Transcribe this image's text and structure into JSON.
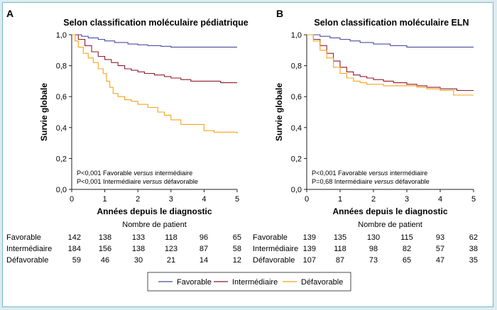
{
  "panels": [
    {
      "letter": "A",
      "title": "Selon classification moléculaire pédiatrique",
      "ylabel": "Survie globale",
      "xlabel": "Années depuis le diagnostic",
      "notes": [
        {
          "p": "P<0,001",
          "a": "Favorable ",
          "b": "versus",
          "c": " intermédiaire"
        },
        {
          "p": "P<0,001",
          "a": "Intermédiaire ",
          "b": "versus",
          "c": " défavorable"
        }
      ]
    },
    {
      "letter": "B",
      "title": "Selon classification moléculaire ELN",
      "ylabel": "Survie globale",
      "xlabel": "Années depuis le diagnostic",
      "notes": [
        {
          "p": "P<0,001",
          "a": "Favorable ",
          "b": "versus",
          "c": " intermédiaire"
        },
        {
          "p": "P=0,68",
          "a": "Intermédiaire ",
          "b": "versus",
          "c": " défavorable"
        }
      ]
    }
  ],
  "risk_table": {
    "heading": "Nombre de patient",
    "rows": [
      "Favorable",
      "Intermédiaire",
      "Défavorable"
    ],
    "A": [
      [
        "142",
        "138",
        "133",
        "118",
        "96",
        "65"
      ],
      [
        "184",
        "156",
        "138",
        "123",
        "87",
        "58"
      ],
      [
        "59",
        "46",
        "30",
        "21",
        "14",
        "12"
      ]
    ],
    "B": [
      [
        "139",
        "135",
        "130",
        "115",
        "93",
        "62"
      ],
      [
        "139",
        "118",
        "98",
        "82",
        "57",
        "38"
      ],
      [
        "107",
        "87",
        "73",
        "65",
        "47",
        "35"
      ]
    ]
  },
  "legend": [
    "Favorable",
    "Intermédiaire",
    "Défavorable"
  ],
  "colors": {
    "Favorable": "#4b4b9e",
    "Intermédiaire": "#8c1c2e",
    "Défavorable": "#f5a31a"
  },
  "chart_data": [
    {
      "type": "line",
      "title": "Selon classification moléculaire pédiatrique",
      "xlabel": "Années depuis le diagnostic",
      "ylabel": "Survie globale",
      "xlim": [
        0,
        5
      ],
      "ylim": [
        0,
        1
      ],
      "xticks": [
        "0",
        "1",
        "2",
        "3",
        "4",
        "5"
      ],
      "yticks": [
        "0,0",
        "0,2",
        "0,4",
        "0,6",
        "0,8",
        "1,0"
      ],
      "series": [
        {
          "name": "Favorable",
          "x": [
            0,
            0.3,
            0.5,
            0.8,
            1.0,
            1.3,
            1.7,
            2.0,
            2.3,
            2.7,
            3.0,
            4.0,
            5.0
          ],
          "y": [
            1.0,
            0.99,
            0.98,
            0.97,
            0.96,
            0.95,
            0.94,
            0.935,
            0.93,
            0.925,
            0.92,
            0.92,
            0.92
          ]
        },
        {
          "name": "Intermédiaire",
          "x": [
            0,
            0.2,
            0.4,
            0.6,
            0.8,
            1.0,
            1.2,
            1.4,
            1.6,
            1.8,
            2.0,
            2.2,
            2.5,
            2.8,
            3.0,
            3.3,
            3.6,
            4.0,
            4.5,
            5.0
          ],
          "y": [
            1.0,
            0.97,
            0.93,
            0.89,
            0.86,
            0.84,
            0.82,
            0.8,
            0.78,
            0.77,
            0.76,
            0.75,
            0.74,
            0.73,
            0.72,
            0.71,
            0.7,
            0.7,
            0.69,
            0.69
          ]
        },
        {
          "name": "Défavorable",
          "x": [
            0,
            0.1,
            0.2,
            0.35,
            0.5,
            0.65,
            0.8,
            0.95,
            1.05,
            1.15,
            1.25,
            1.4,
            1.6,
            1.8,
            2.0,
            2.3,
            2.6,
            2.8,
            3.0,
            3.3,
            3.6,
            4.0,
            4.3,
            5.0
          ],
          "y": [
            1.0,
            0.96,
            0.92,
            0.88,
            0.85,
            0.82,
            0.78,
            0.75,
            0.7,
            0.66,
            0.62,
            0.6,
            0.58,
            0.57,
            0.55,
            0.53,
            0.5,
            0.48,
            0.45,
            0.42,
            0.42,
            0.38,
            0.37,
            0.36
          ]
        }
      ],
      "annotations": [
        "P<0,001 Favorable versus intermédiaire",
        "P<0,001 Intermédiaire versus défavorable"
      ],
      "legend_position": "bottom"
    },
    {
      "type": "line",
      "title": "Selon classification moléculaire ELN",
      "xlabel": "Années depuis le diagnostic",
      "ylabel": "Survie globale",
      "xlim": [
        0,
        5
      ],
      "ylim": [
        0,
        1
      ],
      "xticks": [
        "0",
        "1",
        "2",
        "3",
        "4",
        "5"
      ],
      "yticks": [
        "0,0",
        "0,2",
        "0,4",
        "0,6",
        "0,8",
        "1,0"
      ],
      "series": [
        {
          "name": "Favorable",
          "x": [
            0,
            0.4,
            0.7,
            1.0,
            1.3,
            1.6,
            2.0,
            2.5,
            3.0,
            4.0,
            5.0
          ],
          "y": [
            1.0,
            0.99,
            0.98,
            0.97,
            0.96,
            0.95,
            0.94,
            0.93,
            0.92,
            0.92,
            0.92
          ]
        },
        {
          "name": "Intermédiaire",
          "x": [
            0,
            0.2,
            0.4,
            0.6,
            0.8,
            1.0,
            1.2,
            1.4,
            1.6,
            1.8,
            2.0,
            2.3,
            2.6,
            3.0,
            3.3,
            3.6,
            4.0,
            4.5,
            5.0
          ],
          "y": [
            1.0,
            0.97,
            0.93,
            0.88,
            0.83,
            0.79,
            0.76,
            0.74,
            0.73,
            0.72,
            0.71,
            0.7,
            0.69,
            0.68,
            0.67,
            0.66,
            0.65,
            0.64,
            0.64
          ]
        },
        {
          "name": "Défavorable",
          "x": [
            0,
            0.2,
            0.4,
            0.6,
            0.8,
            1.0,
            1.2,
            1.4,
            1.6,
            1.8,
            2.0,
            2.3,
            2.6,
            3.0,
            3.3,
            3.6,
            4.0,
            4.4,
            5.0
          ],
          "y": [
            1.0,
            0.96,
            0.9,
            0.85,
            0.79,
            0.75,
            0.72,
            0.7,
            0.69,
            0.68,
            0.68,
            0.67,
            0.67,
            0.67,
            0.66,
            0.65,
            0.64,
            0.61,
            0.61
          ]
        }
      ],
      "annotations": [
        "P<0,001 Favorable versus intermédiaire",
        "P=0,68 Intermédiaire versus défavorable"
      ],
      "legend_position": "bottom"
    }
  ]
}
